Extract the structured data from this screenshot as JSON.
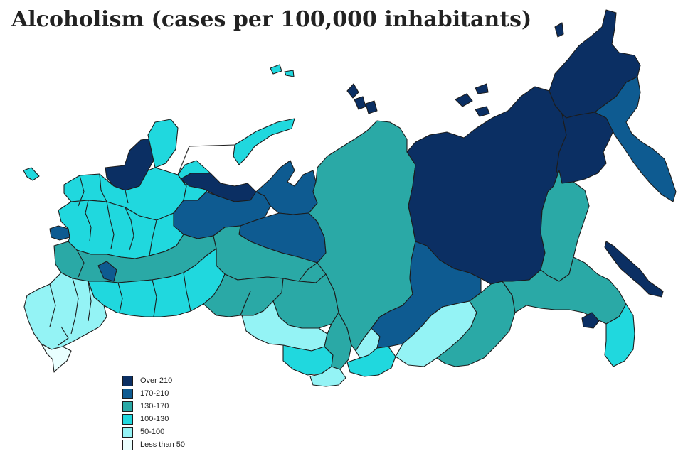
{
  "title": "Alcoholism (cases per 100,000 inhabitants)",
  "colors": {
    "c1": "#0b2f63",
    "c2": "#0e5b91",
    "c3": "#2aa9a6",
    "c4": "#20d8de",
    "c5": "#94f3f5",
    "c6": "#e9ffff"
  },
  "legend": [
    {
      "label": "Over 210",
      "class": "c1"
    },
    {
      "label": "170-210",
      "class": "c2"
    },
    {
      "label": "130-170",
      "class": "c3"
    },
    {
      "label": "100-130",
      "class": "c4"
    },
    {
      "label": "50-100",
      "class": "c5"
    },
    {
      "label": "Less than 50",
      "class": "c6"
    }
  ],
  "regions": [
    {
      "id": "kaliningrad",
      "class": "c4"
    },
    {
      "id": "karelia-north",
      "class": "c1"
    },
    {
      "id": "kola",
      "class": "c4"
    },
    {
      "id": "arkhangelsk",
      "class": "c4"
    },
    {
      "id": "nenets",
      "class": "c1"
    },
    {
      "id": "novaya-zemlya",
      "class": "c4"
    },
    {
      "id": "komi",
      "class": "c2"
    },
    {
      "id": "yamal",
      "class": "c2"
    },
    {
      "id": "khanty-mansi",
      "class": "c2"
    },
    {
      "id": "northwest-belt",
      "class": "c4"
    },
    {
      "id": "central-core",
      "class": "c4"
    },
    {
      "id": "pskov",
      "class": "c2"
    },
    {
      "id": "central-mid",
      "class": "c3"
    },
    {
      "id": "volga-upper",
      "class": "c3"
    },
    {
      "id": "volga-lower",
      "class": "c4"
    },
    {
      "id": "south-west",
      "class": "c5"
    },
    {
      "id": "caucasus",
      "class": "c6"
    },
    {
      "id": "ural-south",
      "class": "c3"
    },
    {
      "id": "tyumen-south",
      "class": "c3"
    },
    {
      "id": "omsk",
      "class": "c5"
    },
    {
      "id": "novosibirsk",
      "class": "c4"
    },
    {
      "id": "altai-krai",
      "class": "c5"
    },
    {
      "id": "altai-rep",
      "class": "c3"
    },
    {
      "id": "krasnoyarsk",
      "class": "c3"
    },
    {
      "id": "tuva",
      "class": "c4"
    },
    {
      "id": "khakassia",
      "class": "c5"
    },
    {
      "id": "irkutsk",
      "class": "c2"
    },
    {
      "id": "buryatia",
      "class": "c5"
    },
    {
      "id": "zabaikalsky",
      "class": "c3"
    },
    {
      "id": "yakutia",
      "class": "c1"
    },
    {
      "id": "severnaya-zemlya",
      "class": "c1"
    },
    {
      "id": "new-siberian-islands",
      "class": "c1"
    },
    {
      "id": "chukotka",
      "class": "c1"
    },
    {
      "id": "magadan",
      "class": "c1"
    },
    {
      "id": "kamchatka",
      "class": "c2"
    },
    {
      "id": "khabarovsk",
      "class": "c3"
    },
    {
      "id": "amur",
      "class": "c3"
    },
    {
      "id": "sakhalin",
      "class": "c1"
    },
    {
      "id": "primorsky",
      "class": "c4"
    },
    {
      "id": "jewish-ao",
      "class": "c1"
    },
    {
      "id": "franz-josef",
      "class": "c4"
    },
    {
      "id": "wrangel",
      "class": "c1"
    }
  ]
}
